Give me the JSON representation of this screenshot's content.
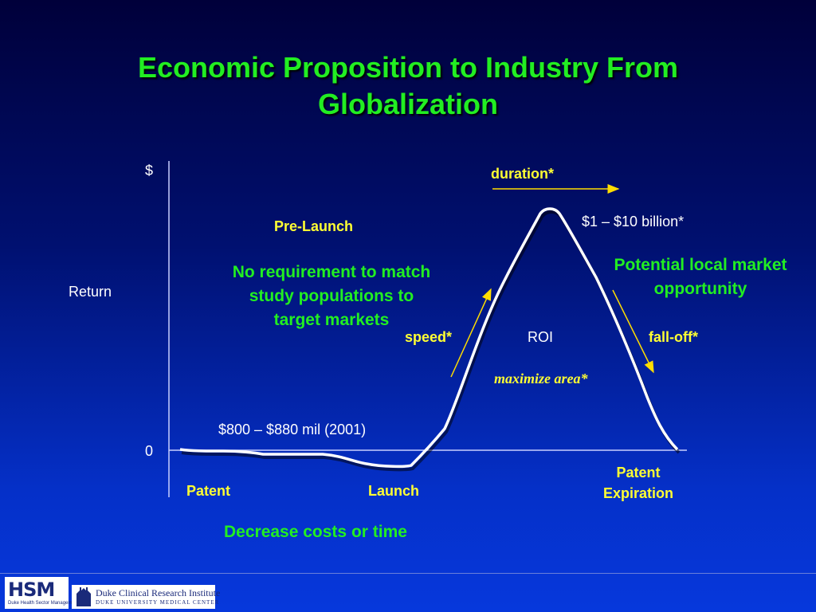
{
  "title": {
    "line1": "Economic Proposition to Industry From",
    "line2": "Globalization"
  },
  "axis": {
    "y_top": "$",
    "y_mid": "Return",
    "y_zero": "0"
  },
  "labels": {
    "duration": "duration*",
    "peak_value": "$1 – $10 billion*",
    "pre_launch": "Pre-Launch",
    "no_req": [
      "No requirement to match",
      "study populations to",
      "target markets"
    ],
    "potential": [
      "Potential local market",
      "opportunity"
    ],
    "speed": "speed*",
    "roi": "ROI",
    "fall_off": "fall-off*",
    "maximize": "maximize area*",
    "cost": "$800 – $880 mil (2001)",
    "patent": "Patent",
    "launch": "Launch",
    "patent_expiration": [
      "Patent",
      "Expiration"
    ],
    "decrease": "Decrease costs or time"
  },
  "footer": {
    "hsm_logo_text": "HSM",
    "hsm_sub": "Duke Health Sector Management",
    "duke_line1": "Duke Clinical Research Institute",
    "duke_line2": "DUKE UNIVERSITY MEDICAL CENTER"
  },
  "colors": {
    "title_green": "#22ee22",
    "label_yellow": "#ffff33",
    "curve_white": "#ffffff",
    "arrow_yellow": "#ffdd00"
  }
}
